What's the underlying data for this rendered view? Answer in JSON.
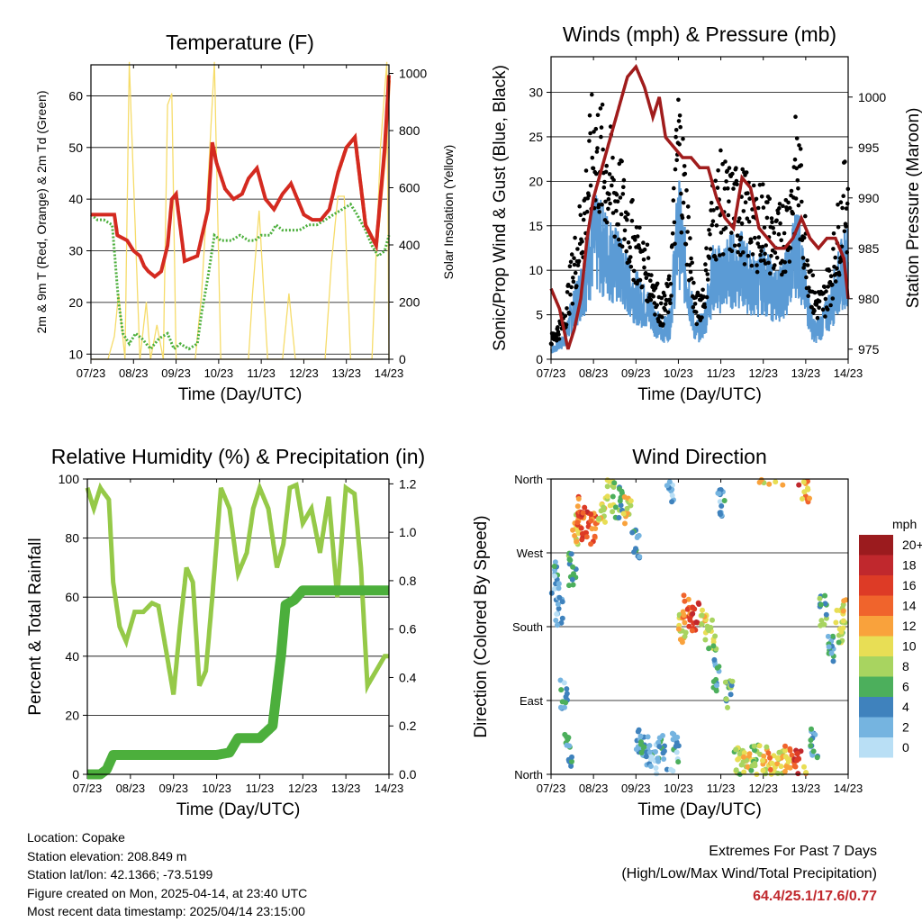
{
  "x_ticks": [
    "07/23",
    "08/23",
    "09/23",
    "10/23",
    "11/23",
    "12/23",
    "13/23",
    "14/23"
  ],
  "x_label": "Time (Day/UTC)",
  "panels": {
    "temperature": {
      "title": "Temperature (F)",
      "y_label_left": "2m & 9m T (Red, Orange) & 2m Td (Green)",
      "y_label_right": "Solar Insolation (Yellow)",
      "y_ticks_left": [
        "10",
        "20",
        "30",
        "40",
        "50",
        "60"
      ],
      "y_ticks_right": [
        "0",
        "200",
        "400",
        "600",
        "800",
        "1000"
      ]
    },
    "winds": {
      "title": "Winds (mph) & Pressure (mb)",
      "y_label_left": "Sonic/Prop Wind & Gust (Blue, Black)",
      "y_label_right": "Station Pressure (Maroon)",
      "y_ticks_left": [
        "0",
        "5",
        "10",
        "15",
        "20",
        "25",
        "30"
      ],
      "y_ticks_right": [
        "975",
        "980",
        "985",
        "990",
        "995",
        "1000"
      ]
    },
    "humidity": {
      "title": "Relative Humidity (%) & Precipitation (in)",
      "y_label_left": "Percent & Total Rainfall",
      "y_ticks_left": [
        "0",
        "20",
        "40",
        "60",
        "80",
        "100"
      ],
      "y_ticks_right": [
        "0.0",
        "0.2",
        "0.4",
        "0.6",
        "0.8",
        "1.0",
        "1.2"
      ]
    },
    "direction": {
      "title": "Wind Direction",
      "y_label_left": "Direction (Colored By Speed)",
      "y_ticks_left": [
        "North",
        "East",
        "South",
        "West",
        "North"
      ],
      "legend_title": "mph",
      "legend_labels": [
        "20+",
        "18",
        "16",
        "14",
        "12",
        "10",
        "8",
        "6",
        "4",
        "2",
        "0"
      ]
    }
  },
  "colors": {
    "temp_2m": "#d42a20",
    "temp_9m": "#f08a30",
    "dewpoint": "#4caf3c",
    "solar": "#f6dc6a",
    "wind": "#5b9bd5",
    "gust": "#000000",
    "pressure": "#a01c1c",
    "rh": "#95c948",
    "precip": "#4caf3c",
    "legend": [
      "#9b1b1e",
      "#c0282d",
      "#dd3b26",
      "#f0642c",
      "#f9a23c",
      "#e8de55",
      "#a8d460",
      "#4caf5c",
      "#3f82bd",
      "#75b4e0",
      "#b9dff5"
    ]
  },
  "chart_data": [
    {
      "type": "line",
      "title": "Temperature (F)",
      "xlabel": "Time (Day/UTC)",
      "ylabel": "2m & 9m T (Red, Orange) & 2m Td (Green)",
      "y2label": "Solar Insolation (Yellow)",
      "xlim": [
        7,
        14
      ],
      "ylim": [
        9,
        66
      ],
      "y2lim": [
        0,
        1030
      ],
      "series": [
        {
          "name": "2m T (Red)",
          "x": [
            7.0,
            7.3,
            7.55,
            7.62,
            7.85,
            8.0,
            8.15,
            8.25,
            8.35,
            8.5,
            8.65,
            8.8,
            8.9,
            9.0,
            9.2,
            9.5,
            9.75,
            9.85,
            9.95,
            10.15,
            10.35,
            10.55,
            10.7,
            10.9,
            11.1,
            11.3,
            11.5,
            11.7,
            11.85,
            12.0,
            12.2,
            12.4,
            12.6,
            12.8,
            13.0,
            13.2,
            13.45,
            13.7,
            13.9,
            14.0
          ],
          "y": [
            37,
            37,
            37,
            33,
            32,
            30,
            29,
            27,
            26,
            25,
            26,
            31,
            40,
            41,
            28,
            29,
            38,
            51,
            47,
            42,
            40,
            41,
            44,
            46,
            40,
            38,
            41,
            43,
            40,
            37,
            36,
            36,
            38,
            45,
            50,
            52,
            35,
            31,
            50,
            64
          ]
        },
        {
          "name": "2m Td (Green)",
          "x": [
            7.0,
            7.15,
            7.3,
            7.5,
            7.65,
            7.75,
            7.9,
            8.05,
            8.2,
            8.4,
            8.6,
            8.8,
            8.95,
            9.1,
            9.3,
            9.5,
            9.6,
            9.75,
            9.9,
            10.05,
            10.3,
            10.5,
            10.7,
            10.85,
            11.0,
            11.2,
            11.35,
            11.5,
            11.7,
            11.9,
            12.1,
            12.3,
            12.5,
            12.7,
            12.9,
            13.1,
            13.25,
            13.45,
            13.6,
            13.75,
            13.9,
            14.0
          ],
          "y": [
            37,
            36,
            36,
            35,
            20,
            14,
            12,
            14,
            13,
            11,
            13,
            14,
            11,
            12,
            11,
            12,
            18,
            25,
            33,
            32,
            32,
            33,
            32,
            32,
            33,
            33,
            35,
            34,
            34,
            34,
            35,
            35,
            36,
            37,
            38,
            39,
            37,
            34,
            31,
            29,
            30,
            33
          ]
        },
        {
          "name": "9m T (Orange)",
          "x": [
            12.8,
            13.0,
            13.2,
            13.45,
            13.7,
            13.9,
            14.0
          ],
          "y": [
            45,
            50,
            52,
            35,
            31,
            49,
            63
          ]
        },
        {
          "name": "Solar Insolation (Yellow)",
          "axis": "right",
          "x": [
            7.0,
            7.4,
            7.55,
            7.65,
            7.8,
            7.9,
            8.15,
            8.3,
            8.4,
            8.55,
            8.7,
            8.8,
            8.9,
            9.0,
            9.2,
            9.45,
            9.6,
            9.75,
            9.9,
            10.05,
            10.3,
            10.5,
            10.7,
            10.8,
            10.95,
            11.15,
            11.5,
            11.65,
            11.8,
            11.95,
            12.2,
            12.5,
            12.65,
            12.8,
            12.95,
            13.1,
            13.3,
            13.45,
            13.6,
            13.8,
            13.95,
            14.0
          ],
          "y": [
            0,
            0,
            80,
            230,
            0,
            1040,
            0,
            200,
            0,
            120,
            0,
            890,
            930,
            0,
            0,
            0,
            230,
            620,
            1040,
            0,
            0,
            0,
            0,
            240,
            520,
            0,
            0,
            230,
            0,
            0,
            0,
            0,
            340,
            570,
            570,
            0,
            0,
            0,
            0,
            740,
            1040,
            0
          ]
        }
      ]
    },
    {
      "type": "line",
      "title": "Winds (mph) & Pressure (mb)",
      "xlabel": "Time (Day/UTC)",
      "ylabel": "Sonic/Prop Wind & Gust (Blue, Black)",
      "y2label": "Station Pressure (Maroon)",
      "xlim": [
        7,
        14
      ],
      "ylim": [
        0,
        34
      ],
      "y2lim": [
        974,
        1004
      ],
      "series": [
        {
          "name": "Wind (Blue)",
          "x": [
            7.0,
            7.3,
            7.5,
            7.8,
            8.0,
            8.3,
            8.6,
            9.0,
            9.4,
            9.6,
            9.8,
            10.0,
            10.2,
            10.4,
            10.6,
            10.8,
            11.0,
            11.2,
            11.5,
            11.8,
            12.0,
            12.3,
            12.6,
            12.8,
            13.0,
            13.2,
            13.4,
            13.6,
            13.8,
            14.0
          ],
          "y": [
            1,
            2,
            5,
            9,
            13,
            12,
            10,
            7,
            5,
            3,
            4,
            15,
            9,
            3,
            4,
            9,
            9,
            10,
            10,
            8,
            9,
            7,
            9,
            13,
            7,
            3,
            4,
            6,
            9,
            11
          ]
        },
        {
          "name": "Gust (Black)",
          "x": [
            7.0,
            7.3,
            7.5,
            7.8,
            8.0,
            8.3,
            8.6,
            9.0,
            9.4,
            9.6,
            9.8,
            10.0,
            10.2,
            10.4,
            10.6,
            10.8,
            11.0,
            11.2,
            11.5,
            11.8,
            12.0,
            12.3,
            12.6,
            12.8,
            13.0,
            13.2,
            13.4,
            13.6,
            13.8,
            14.0
          ],
          "y": [
            2,
            4,
            9,
            16,
            23,
            20,
            17,
            12,
            8,
            5,
            7,
            24,
            15,
            5,
            7,
            15,
            17,
            16,
            16,
            14,
            15,
            12,
            15,
            21,
            12,
            6,
            6,
            9,
            14,
            18
          ]
        },
        {
          "name": "Pressure (Maroon)",
          "axis": "right",
          "x": [
            7.0,
            7.2,
            7.4,
            7.55,
            7.7,
            7.85,
            8.0,
            8.2,
            8.4,
            8.6,
            8.8,
            9.0,
            9.2,
            9.4,
            9.55,
            9.7,
            9.9,
            10.1,
            10.3,
            10.5,
            10.7,
            10.9,
            11.1,
            11.3,
            11.5,
            11.7,
            11.9,
            12.1,
            12.3,
            12.5,
            12.7,
            12.9,
            13.1,
            13.3,
            13.5,
            13.7,
            13.9,
            14.0
          ],
          "y": [
            981,
            979,
            975,
            977,
            980,
            986,
            990,
            993,
            996,
            999,
            1002,
            1003,
            1001,
            998,
            1000,
            996,
            995,
            994,
            994,
            993,
            993,
            990,
            988,
            987,
            992,
            991,
            987,
            986,
            985,
            985,
            986,
            988,
            986,
            985,
            986,
            986,
            984,
            980
          ]
        }
      ]
    },
    {
      "type": "line",
      "title": "Relative Humidity (%) & Precipitation (in)",
      "xlabel": "Time (Day/UTC)",
      "ylabel": "Percent & Total Rainfall",
      "xlim": [
        7,
        14
      ],
      "ylim": [
        0,
        100
      ],
      "y2lim": [
        0,
        1.22
      ],
      "series": [
        {
          "name": "Relative Humidity",
          "x": [
            7.0,
            7.15,
            7.3,
            7.5,
            7.6,
            7.75,
            7.9,
            8.1,
            8.3,
            8.5,
            8.65,
            8.85,
            9.0,
            9.15,
            9.3,
            9.45,
            9.6,
            9.75,
            9.9,
            10.1,
            10.3,
            10.5,
            10.7,
            10.85,
            11.0,
            11.2,
            11.4,
            11.55,
            11.7,
            11.85,
            12.0,
            12.2,
            12.4,
            12.6,
            12.8,
            13.0,
            13.2,
            13.35,
            13.5,
            13.7,
            13.9,
            14.0
          ],
          "y": [
            97,
            90,
            97,
            93,
            65,
            50,
            45,
            55,
            55,
            58,
            57,
            40,
            27,
            50,
            70,
            65,
            30,
            35,
            60,
            97,
            90,
            68,
            75,
            90,
            97,
            90,
            70,
            78,
            97,
            98,
            85,
            90,
            75,
            94,
            60,
            97,
            95,
            70,
            30,
            35,
            40,
            40
          ]
        },
        {
          "name": "Total Rainfall",
          "axis": "right",
          "x": [
            7.0,
            7.3,
            7.45,
            7.6,
            8.0,
            9.0,
            10.0,
            10.3,
            10.5,
            10.8,
            11.0,
            11.3,
            11.5,
            11.6,
            11.8,
            12.0,
            12.5,
            13.0,
            13.5,
            14.0
          ],
          "y": [
            0.0,
            0.0,
            0.02,
            0.08,
            0.08,
            0.08,
            0.08,
            0.09,
            0.15,
            0.15,
            0.15,
            0.2,
            0.5,
            0.7,
            0.72,
            0.76,
            0.76,
            0.76,
            0.76,
            0.76
          ]
        }
      ]
    },
    {
      "type": "scatter",
      "title": "Wind Direction",
      "xlabel": "Time (Day/UTC)",
      "ylabel": "Direction (Colored By Speed)",
      "xlim": [
        7,
        14
      ],
      "ylim": [
        0,
        360
      ],
      "y_tick_labels": [
        "North",
        "East",
        "South",
        "West",
        "North"
      ],
      "colorbar": {
        "label": "mph",
        "ticks": [
          "20+",
          "18",
          "16",
          "14",
          "12",
          "10",
          "8",
          "6",
          "4",
          "2",
          "0"
        ]
      },
      "series": [
        {
          "name": "direction",
          "x": [
            7.1,
            7.2,
            7.3,
            7.4,
            7.5,
            7.6,
            7.7,
            7.8,
            8.0,
            8.2,
            8.4,
            8.6,
            8.8,
            9.0,
            9.1,
            9.2,
            9.4,
            9.6,
            9.8,
            9.95,
            10.1,
            10.2,
            10.4,
            10.6,
            10.8,
            10.9,
            11.0,
            11.2,
            11.4,
            11.6,
            11.8,
            12.0,
            12.2,
            12.4,
            12.6,
            12.8,
            13.0,
            13.2,
            13.4,
            13.6,
            13.8,
            13.95
          ],
          "y": [
            240,
            200,
            100,
            30,
            250,
            300,
            320,
            300,
            300,
            320,
            340,
            330,
            320,
            280,
            40,
            30,
            20,
            30,
            350,
            30,
            180,
            200,
            195,
            180,
            170,
            120,
            330,
            100,
            20,
            20,
            20,
            15,
            10,
            10,
            15,
            10,
            350,
            40,
            200,
            150,
            180,
            200
          ],
          "speed": [
            3,
            2,
            3,
            4,
            6,
            10,
            14,
            16,
            14,
            10,
            8,
            6,
            10,
            4,
            3,
            4,
            3,
            4,
            2,
            3,
            10,
            14,
            16,
            10,
            8,
            4,
            3,
            6,
            8,
            10,
            8,
            10,
            12,
            10,
            12,
            16,
            12,
            4,
            6,
            4,
            8,
            10
          ]
        }
      ]
    }
  ],
  "info": {
    "location": "Location: Copake",
    "elevation": "Station elevation: 208.849 m",
    "latlon": "Station lat/lon: 42.1366; -73.5199",
    "created": "Figure created on Mon, 2025-04-14, at 23:40 UTC",
    "recent": "Most recent data timestamp: 2025/04/14 23:15:00"
  },
  "extremes": {
    "title": "Extremes For Past 7 Days",
    "subtitle": "(High/Low/Max Wind/Total Precipitation)",
    "values": "64.4/25.1/17.6/0.77"
  }
}
